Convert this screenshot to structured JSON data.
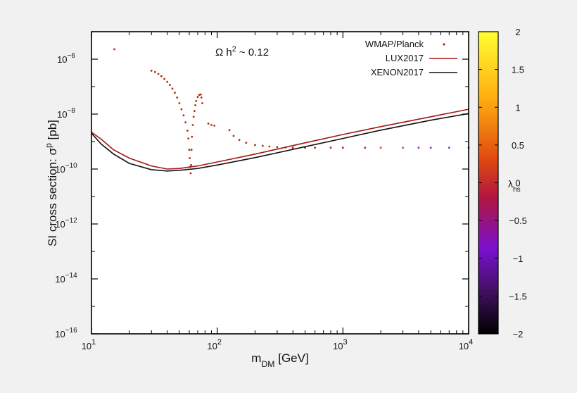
{
  "chart_data": {
    "type": "scatter",
    "xlabel": "m_DM [GeV]",
    "ylabel": "SI cross section: σ^p [pb]",
    "annotation": "Ω h^2 ~ 0.12",
    "x_scale": "log",
    "y_scale": "log",
    "xlim": [
      10,
      10000
    ],
    "ylim": [
      1e-16,
      1e-05
    ],
    "x_ticks": [
      {
        "value": 10,
        "base": "10",
        "exp": "1"
      },
      {
        "value": 100,
        "base": "10",
        "exp": "2"
      },
      {
        "value": 1000,
        "base": "10",
        "exp": "3"
      },
      {
        "value": 10000,
        "base": "10",
        "exp": "4"
      }
    ],
    "y_ticks": [
      {
        "value": 1e-16,
        "base": "10",
        "exp": "−16"
      },
      {
        "value": 1e-14,
        "base": "10",
        "exp": "−14"
      },
      {
        "value": 1e-12,
        "base": "10",
        "exp": "−12"
      },
      {
        "value": 1e-10,
        "base": "10",
        "exp": "−10"
      },
      {
        "value": 1e-08,
        "base": "10",
        "exp": "−8"
      },
      {
        "value": 1e-06,
        "base": "10",
        "exp": "−6"
      }
    ],
    "legend_position": "top-right",
    "grid": false,
    "series": [
      {
        "name": "WMAP/Planck",
        "kind": "points",
        "color": "#b22a0a",
        "points": [
          [
            15.2,
            2.3e-06
          ],
          [
            30,
            3.8e-07
          ],
          [
            32,
            3.4e-07
          ],
          [
            34,
            2.9e-07
          ],
          [
            36,
            2.4e-07
          ],
          [
            38,
            1.9e-07
          ],
          [
            40,
            1.5e-07
          ],
          [
            42,
            1.15e-07
          ],
          [
            44,
            8.5e-08
          ],
          [
            46,
            6e-08
          ],
          [
            48,
            4e-08
          ],
          [
            50,
            2.5e-08
          ],
          [
            52,
            1.5e-08
          ],
          [
            54,
            9e-09
          ],
          [
            56,
            5e-09
          ],
          [
            58,
            2.5e-09
          ],
          [
            59,
            1.3e-09
          ],
          [
            60,
            5e-10
          ],
          [
            60.5,
            2.5e-10
          ],
          [
            61,
            1.2e-10
          ],
          [
            61.5,
            7e-11
          ],
          [
            62,
            1.4e-10
          ],
          [
            62.5,
            5e-10
          ],
          [
            63,
            1.5e-09
          ],
          [
            64,
            4e-09
          ],
          [
            65,
            8e-09
          ],
          [
            66,
            1.3e-08
          ],
          [
            67,
            2.1e-08
          ],
          [
            68,
            3e-08
          ],
          [
            70,
            4.2e-08
          ],
          [
            72,
            5e-08
          ],
          [
            74,
            5.2e-08
          ],
          [
            75,
            4e-08
          ],
          [
            76,
            2.5e-08
          ],
          [
            85,
            4.5e-09
          ],
          [
            90,
            4e-09
          ],
          [
            95,
            3.8e-09
          ],
          [
            125,
            2.6e-09
          ],
          [
            135,
            1.6e-09
          ],
          [
            150,
            1.15e-09
          ],
          [
            170,
            9e-10
          ],
          [
            200,
            7.5e-10
          ],
          [
            230,
            7e-10
          ],
          [
            260,
            6.6e-10
          ],
          [
            300,
            6.3e-10
          ],
          [
            350,
            6.1e-10
          ],
          [
            400,
            6e-10
          ],
          [
            500,
            6e-10
          ],
          [
            600,
            6e-10
          ],
          [
            800,
            6e-10
          ],
          [
            1000,
            6e-10
          ],
          [
            1500,
            6e-10
          ],
          [
            2000,
            6e-10
          ],
          [
            3000,
            6e-10
          ],
          [
            4000,
            6e-10
          ],
          [
            5000,
            6e-10
          ],
          [
            7000,
            6e-10
          ],
          [
            10000,
            6e-10
          ]
        ]
      },
      {
        "name": "LUX2017",
        "kind": "line",
        "color": "#a51616",
        "points": [
          [
            10,
            2.2e-09
          ],
          [
            12,
            1.2e-09
          ],
          [
            15,
            5e-10
          ],
          [
            20,
            2.5e-10
          ],
          [
            30,
            1.3e-10
          ],
          [
            40,
            1e-10
          ],
          [
            50,
            1.05e-10
          ],
          [
            70,
            1.3e-10
          ],
          [
            100,
            1.8e-10
          ],
          [
            200,
            3.5e-10
          ],
          [
            500,
            9e-10
          ],
          [
            1000,
            1.8e-09
          ],
          [
            2000,
            3.5e-09
          ],
          [
            5000,
            8e-09
          ],
          [
            10000,
            1.5e-08
          ]
        ]
      },
      {
        "name": "XENON2017",
        "kind": "line",
        "color": "#111111",
        "points": [
          [
            10,
            2e-09
          ],
          [
            12,
            8e-10
          ],
          [
            15,
            3.5e-10
          ],
          [
            20,
            1.6e-10
          ],
          [
            30,
            9.5e-11
          ],
          [
            40,
            8.5e-11
          ],
          [
            50,
            9e-11
          ],
          [
            70,
            1.05e-10
          ],
          [
            100,
            1.4e-10
          ],
          [
            200,
            2.6e-10
          ],
          [
            500,
            6.5e-10
          ],
          [
            1000,
            1.3e-09
          ],
          [
            2000,
            2.6e-09
          ],
          [
            5000,
            6e-09
          ],
          [
            10000,
            1.05e-08
          ]
        ]
      }
    ],
    "colorbar": {
      "label": "λ_hs",
      "range": [
        -2,
        2
      ],
      "ticks": [
        "2",
        "1.5",
        "1",
        "0.5",
        "0",
        "−0.5",
        "−1",
        "−1.5",
        "−2"
      ],
      "tick_values": [
        2,
        1.5,
        1,
        0.5,
        0,
        -0.5,
        -1,
        -1.5,
        -2
      ],
      "gradient": [
        "#ffff33",
        "#ff9a00",
        "#c01a00",
        "#6a00a8",
        "#000000"
      ]
    }
  }
}
